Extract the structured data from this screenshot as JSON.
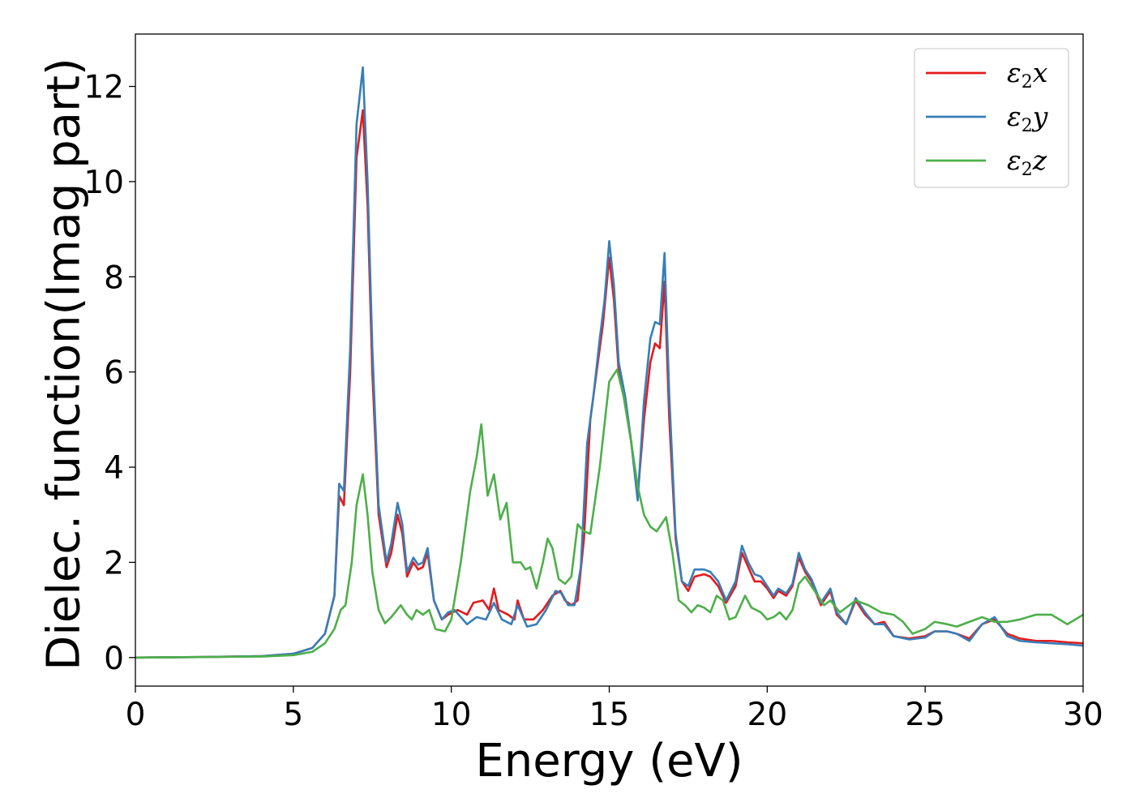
{
  "chart_data": {
    "type": "line",
    "title": "",
    "xlabel": "Energy (eV)",
    "ylabel": "Dielec. function(Imag part)",
    "xlim": [
      0,
      30
    ],
    "ylim": [
      -0.6,
      13.1
    ],
    "xticks": [
      0,
      5,
      10,
      15,
      20,
      25,
      30
    ],
    "yticks": [
      0,
      2,
      4,
      6,
      8,
      10,
      12
    ],
    "grid": false,
    "legend_position": "top-right",
    "series": [
      {
        "name": "ε2x",
        "legend": {
          "base": "ε",
          "sub": "2",
          "suffix": "x"
        },
        "color": "#e41a1c",
        "points": [
          [
            0,
            0
          ],
          [
            2,
            0.01
          ],
          [
            4,
            0.03
          ],
          [
            5,
            0.08
          ],
          [
            5.6,
            0.2
          ],
          [
            6.0,
            0.5
          ],
          [
            6.3,
            1.3
          ],
          [
            6.45,
            3.4
          ],
          [
            6.6,
            3.2
          ],
          [
            6.8,
            6
          ],
          [
            7.0,
            10.5
          ],
          [
            7.2,
            11.5
          ],
          [
            7.35,
            9.5
          ],
          [
            7.5,
            6
          ],
          [
            7.7,
            3
          ],
          [
            7.95,
            1.9
          ],
          [
            8.1,
            2.2
          ],
          [
            8.3,
            3.0
          ],
          [
            8.45,
            2.6
          ],
          [
            8.6,
            1.7
          ],
          [
            8.8,
            2.0
          ],
          [
            8.95,
            1.85
          ],
          [
            9.1,
            1.9
          ],
          [
            9.25,
            2.2
          ],
          [
            9.45,
            1.2
          ],
          [
            9.7,
            0.8
          ],
          [
            9.9,
            0.9
          ],
          [
            10.2,
            1.0
          ],
          [
            10.5,
            0.9
          ],
          [
            10.7,
            1.15
          ],
          [
            11.0,
            1.2
          ],
          [
            11.2,
            1.0
          ],
          [
            11.35,
            1.45
          ],
          [
            11.5,
            1.0
          ],
          [
            11.8,
            0.9
          ],
          [
            12.0,
            0.8
          ],
          [
            12.1,
            1.2
          ],
          [
            12.3,
            0.8
          ],
          [
            12.6,
            0.8
          ],
          [
            12.9,
            1.0
          ],
          [
            13.2,
            1.3
          ],
          [
            13.45,
            1.4
          ],
          [
            13.6,
            1.2
          ],
          [
            13.8,
            1.1
          ],
          [
            14.0,
            1.2
          ],
          [
            14.2,
            2.5
          ],
          [
            14.4,
            5
          ],
          [
            14.6,
            6
          ],
          [
            14.8,
            7
          ],
          [
            15.0,
            8.4
          ],
          [
            15.15,
            7.5
          ],
          [
            15.3,
            6.0
          ],
          [
            15.5,
            5.5
          ],
          [
            15.7,
            4.5
          ],
          [
            15.9,
            3.4
          ],
          [
            16.1,
            5.0
          ],
          [
            16.3,
            6.2
          ],
          [
            16.45,
            6.6
          ],
          [
            16.6,
            6.5
          ],
          [
            16.75,
            7.9
          ],
          [
            16.9,
            5
          ],
          [
            17.1,
            2.5
          ],
          [
            17.3,
            1.6
          ],
          [
            17.5,
            1.4
          ],
          [
            17.7,
            1.7
          ],
          [
            18.0,
            1.75
          ],
          [
            18.2,
            1.7
          ],
          [
            18.45,
            1.5
          ],
          [
            18.7,
            1.15
          ],
          [
            19.0,
            1.5
          ],
          [
            19.2,
            2.2
          ],
          [
            19.4,
            1.9
          ],
          [
            19.6,
            1.6
          ],
          [
            19.8,
            1.6
          ],
          [
            20.0,
            1.45
          ],
          [
            20.2,
            1.25
          ],
          [
            20.35,
            1.4
          ],
          [
            20.6,
            1.3
          ],
          [
            20.8,
            1.5
          ],
          [
            21.0,
            2.1
          ],
          [
            21.2,
            1.8
          ],
          [
            21.4,
            1.6
          ],
          [
            21.7,
            1.1
          ],
          [
            22.0,
            1.4
          ],
          [
            22.2,
            0.9
          ],
          [
            22.5,
            0.7
          ],
          [
            22.8,
            1.2
          ],
          [
            23.1,
            0.9
          ],
          [
            23.4,
            0.7
          ],
          [
            23.7,
            0.75
          ],
          [
            24.0,
            0.45
          ],
          [
            24.5,
            0.4
          ],
          [
            25.0,
            0.45
          ],
          [
            25.3,
            0.55
          ],
          [
            25.7,
            0.55
          ],
          [
            26.0,
            0.5
          ],
          [
            26.4,
            0.4
          ],
          [
            26.8,
            0.7
          ],
          [
            27.2,
            0.8
          ],
          [
            27.6,
            0.5
          ],
          [
            28.0,
            0.4
          ],
          [
            28.5,
            0.35
          ],
          [
            29.0,
            0.35
          ],
          [
            29.5,
            0.32
          ],
          [
            30.0,
            0.3
          ]
        ]
      },
      {
        "name": "ε2y",
        "legend": {
          "base": "ε",
          "sub": "2",
          "suffix": "y"
        },
        "color": "#377eb8",
        "points": [
          [
            0,
            0
          ],
          [
            2,
            0.01
          ],
          [
            4,
            0.03
          ],
          [
            5,
            0.08
          ],
          [
            5.6,
            0.2
          ],
          [
            6.0,
            0.5
          ],
          [
            6.3,
            1.3
          ],
          [
            6.45,
            3.65
          ],
          [
            6.6,
            3.5
          ],
          [
            6.8,
            6.5
          ],
          [
            7.0,
            11.2
          ],
          [
            7.2,
            12.4
          ],
          [
            7.35,
            10
          ],
          [
            7.5,
            6.5
          ],
          [
            7.7,
            3.2
          ],
          [
            7.95,
            2.0
          ],
          [
            8.1,
            2.4
          ],
          [
            8.3,
            3.25
          ],
          [
            8.45,
            2.8
          ],
          [
            8.6,
            1.8
          ],
          [
            8.8,
            2.1
          ],
          [
            8.95,
            1.95
          ],
          [
            9.1,
            2.0
          ],
          [
            9.25,
            2.3
          ],
          [
            9.45,
            1.2
          ],
          [
            9.7,
            0.8
          ],
          [
            9.9,
            0.95
          ],
          [
            10.1,
            1.0
          ],
          [
            10.5,
            0.7
          ],
          [
            10.8,
            0.85
          ],
          [
            11.1,
            0.8
          ],
          [
            11.35,
            1.15
          ],
          [
            11.6,
            0.8
          ],
          [
            11.9,
            0.7
          ],
          [
            12.1,
            1.1
          ],
          [
            12.4,
            0.65
          ],
          [
            12.7,
            0.7
          ],
          [
            13.0,
            1.0
          ],
          [
            13.3,
            1.4
          ],
          [
            13.5,
            1.35
          ],
          [
            13.7,
            1.1
          ],
          [
            13.9,
            1.1
          ],
          [
            14.1,
            1.9
          ],
          [
            14.3,
            4.5
          ],
          [
            14.5,
            5.5
          ],
          [
            14.7,
            6.7
          ],
          [
            14.85,
            7.5
          ],
          [
            15.0,
            8.75
          ],
          [
            15.15,
            7.8
          ],
          [
            15.3,
            6.2
          ],
          [
            15.5,
            5.5
          ],
          [
            15.7,
            4.5
          ],
          [
            15.9,
            3.3
          ],
          [
            16.1,
            5.4
          ],
          [
            16.3,
            6.7
          ],
          [
            16.45,
            7.05
          ],
          [
            16.6,
            7.0
          ],
          [
            16.75,
            8.5
          ],
          [
            16.9,
            5.5
          ],
          [
            17.1,
            2.6
          ],
          [
            17.3,
            1.6
          ],
          [
            17.5,
            1.5
          ],
          [
            17.7,
            1.85
          ],
          [
            18.0,
            1.85
          ],
          [
            18.2,
            1.8
          ],
          [
            18.45,
            1.6
          ],
          [
            18.7,
            1.2
          ],
          [
            19.0,
            1.6
          ],
          [
            19.2,
            2.35
          ],
          [
            19.4,
            2.0
          ],
          [
            19.6,
            1.75
          ],
          [
            19.8,
            1.7
          ],
          [
            20.0,
            1.5
          ],
          [
            20.2,
            1.3
          ],
          [
            20.35,
            1.45
          ],
          [
            20.6,
            1.35
          ],
          [
            20.8,
            1.55
          ],
          [
            21.0,
            2.2
          ],
          [
            21.2,
            1.85
          ],
          [
            21.4,
            1.65
          ],
          [
            21.7,
            1.15
          ],
          [
            22.0,
            1.45
          ],
          [
            22.2,
            0.95
          ],
          [
            22.5,
            0.7
          ],
          [
            22.8,
            1.25
          ],
          [
            23.1,
            0.95
          ],
          [
            23.4,
            0.7
          ],
          [
            23.7,
            0.7
          ],
          [
            24.0,
            0.45
          ],
          [
            24.5,
            0.38
          ],
          [
            25.0,
            0.42
          ],
          [
            25.3,
            0.55
          ],
          [
            25.7,
            0.55
          ],
          [
            26.0,
            0.5
          ],
          [
            26.4,
            0.35
          ],
          [
            26.8,
            0.7
          ],
          [
            27.2,
            0.85
          ],
          [
            27.6,
            0.45
          ],
          [
            28.0,
            0.35
          ],
          [
            28.5,
            0.32
          ],
          [
            29.0,
            0.3
          ],
          [
            29.5,
            0.28
          ],
          [
            30.0,
            0.25
          ]
        ]
      },
      {
        "name": "ε2z",
        "legend": {
          "base": "ε",
          "sub": "2",
          "suffix": "z"
        },
        "color": "#4daf4a",
        "points": [
          [
            0,
            0
          ],
          [
            2,
            0.01
          ],
          [
            4,
            0.02
          ],
          [
            5,
            0.05
          ],
          [
            5.6,
            0.12
          ],
          [
            6.0,
            0.3
          ],
          [
            6.3,
            0.6
          ],
          [
            6.5,
            1.0
          ],
          [
            6.65,
            1.1
          ],
          [
            6.85,
            2
          ],
          [
            7.0,
            3.2
          ],
          [
            7.2,
            3.85
          ],
          [
            7.35,
            3
          ],
          [
            7.5,
            1.8
          ],
          [
            7.7,
            1.0
          ],
          [
            7.9,
            0.72
          ],
          [
            8.1,
            0.85
          ],
          [
            8.4,
            1.1
          ],
          [
            8.6,
            0.9
          ],
          [
            8.75,
            0.8
          ],
          [
            8.9,
            1.0
          ],
          [
            9.1,
            0.9
          ],
          [
            9.3,
            1.0
          ],
          [
            9.5,
            0.6
          ],
          [
            9.8,
            0.55
          ],
          [
            10.0,
            0.8
          ],
          [
            10.3,
            2.0
          ],
          [
            10.6,
            3.5
          ],
          [
            10.8,
            4.2
          ],
          [
            10.95,
            4.9
          ],
          [
            11.15,
            3.4
          ],
          [
            11.35,
            3.85
          ],
          [
            11.55,
            2.9
          ],
          [
            11.75,
            3.25
          ],
          [
            11.95,
            2.0
          ],
          [
            12.2,
            2.0
          ],
          [
            12.35,
            1.85
          ],
          [
            12.5,
            1.9
          ],
          [
            12.7,
            1.45
          ],
          [
            12.9,
            2.0
          ],
          [
            13.05,
            2.5
          ],
          [
            13.2,
            2.3
          ],
          [
            13.4,
            1.65
          ],
          [
            13.6,
            1.55
          ],
          [
            13.8,
            1.7
          ],
          [
            14.0,
            2.8
          ],
          [
            14.2,
            2.65
          ],
          [
            14.4,
            2.6
          ],
          [
            14.7,
            4.0
          ],
          [
            15.0,
            5.8
          ],
          [
            15.25,
            6.05
          ],
          [
            15.45,
            5.5
          ],
          [
            15.7,
            4.5
          ],
          [
            15.9,
            3.6
          ],
          [
            16.1,
            3.0
          ],
          [
            16.3,
            2.75
          ],
          [
            16.5,
            2.65
          ],
          [
            16.8,
            2.95
          ],
          [
            17.0,
            2.2
          ],
          [
            17.2,
            1.2
          ],
          [
            17.4,
            1.1
          ],
          [
            17.6,
            0.95
          ],
          [
            17.8,
            1.1
          ],
          [
            18.0,
            1.05
          ],
          [
            18.2,
            0.95
          ],
          [
            18.4,
            1.3
          ],
          [
            18.6,
            1.2
          ],
          [
            18.8,
            0.8
          ],
          [
            19.0,
            0.85
          ],
          [
            19.3,
            1.3
          ],
          [
            19.5,
            1.05
          ],
          [
            19.8,
            0.95
          ],
          [
            20.0,
            0.8
          ],
          [
            20.2,
            0.85
          ],
          [
            20.4,
            0.95
          ],
          [
            20.6,
            0.8
          ],
          [
            20.8,
            1.0
          ],
          [
            21.0,
            1.55
          ],
          [
            21.2,
            1.7
          ],
          [
            21.4,
            1.5
          ],
          [
            21.6,
            1.3
          ],
          [
            21.8,
            1.1
          ],
          [
            22.0,
            1.2
          ],
          [
            22.3,
            0.95
          ],
          [
            22.6,
            1.1
          ],
          [
            22.8,
            1.2
          ],
          [
            23.2,
            1.1
          ],
          [
            23.6,
            0.95
          ],
          [
            24.0,
            0.9
          ],
          [
            24.3,
            0.75
          ],
          [
            24.6,
            0.5
          ],
          [
            25.0,
            0.6
          ],
          [
            25.3,
            0.75
          ],
          [
            25.7,
            0.7
          ],
          [
            26.0,
            0.65
          ],
          [
            26.4,
            0.75
          ],
          [
            26.8,
            0.85
          ],
          [
            27.2,
            0.75
          ],
          [
            27.6,
            0.75
          ],
          [
            28.0,
            0.8
          ],
          [
            28.5,
            0.9
          ],
          [
            29.0,
            0.9
          ],
          [
            29.5,
            0.7
          ],
          [
            30.0,
            0.9
          ]
        ]
      }
    ]
  }
}
